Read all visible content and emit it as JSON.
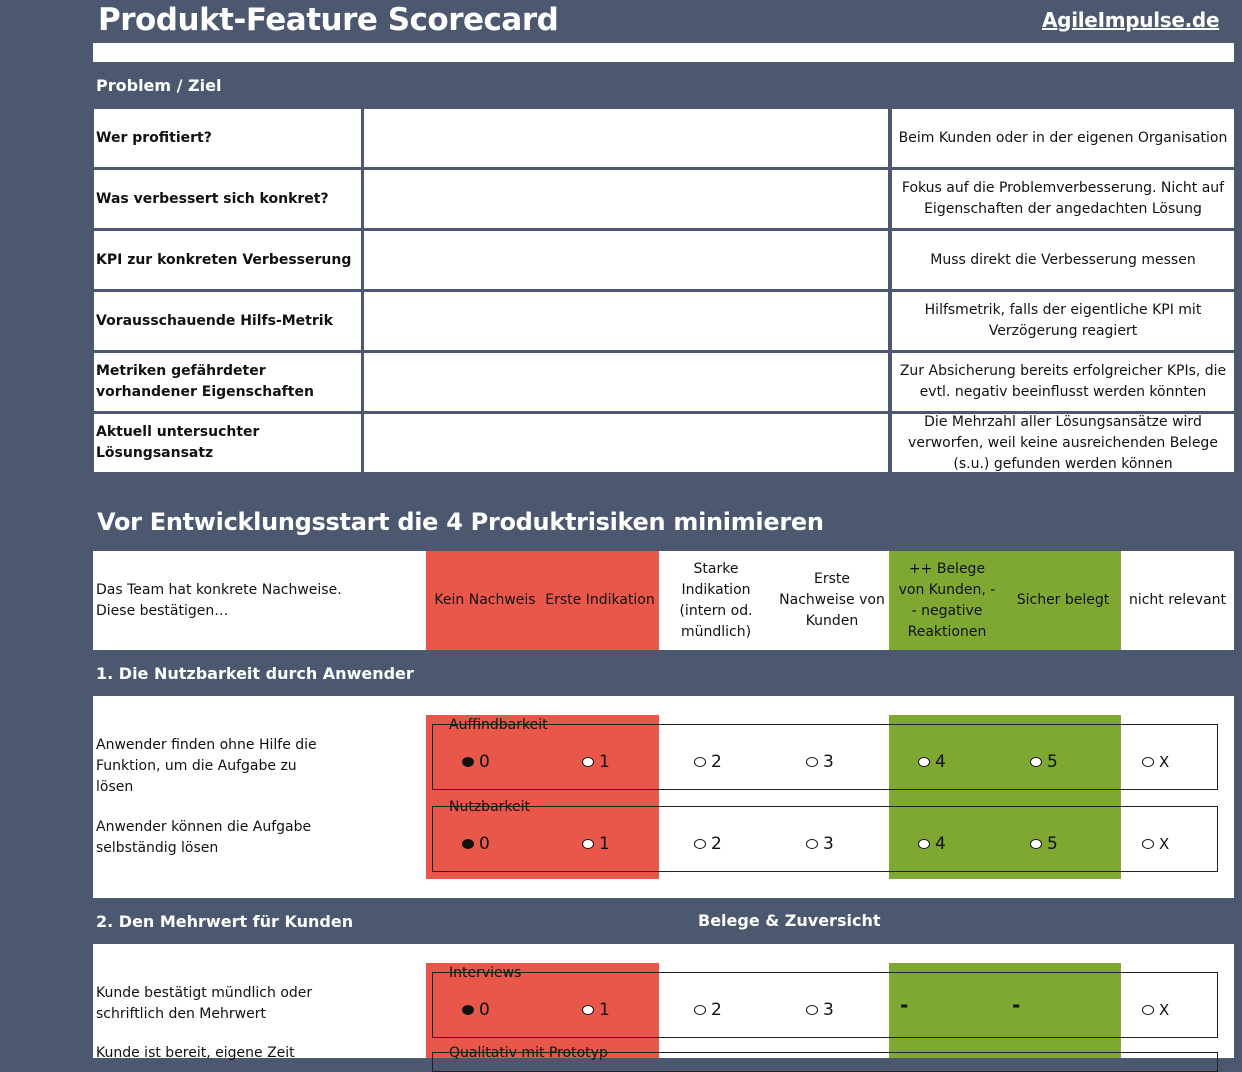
{
  "header": {
    "title": "Produkt-Feature Scorecard",
    "brand": "AgileImpulse.de"
  },
  "problem": {
    "section_label": "Problem / Ziel",
    "rows": [
      {
        "label": "Wer profitiert?",
        "value": "",
        "hint": "Beim Kunden oder in der eigenen Organisation"
      },
      {
        "label": "Was verbessert sich konkret?",
        "value": "",
        "hint": "Fokus auf die Problemverbesserung. Nicht auf Eigenschaften der angedachten Lösung"
      },
      {
        "label": "KPI zur konkreten Verbesserung",
        "value": "",
        "hint": "Muss direkt die Verbesserung messen"
      },
      {
        "label": "Vorausschauende Hilfs-Metrik",
        "value": "",
        "hint": "Hilfsmetrik, falls der eigentliche KPI mit Verzögerung reagiert"
      },
      {
        "label": "Metriken gefährdeter vorhandener Eigenschaften",
        "value": "",
        "hint": "Zur Absicherung bereits erfolgreicher KPIs, die evtl. negativ beeinflusst werden könnten"
      },
      {
        "label": "Aktuell untersuchter Lösungsansatz",
        "value": "",
        "hint": "Die Mehrzahl aller Lösungsansätze wird verworfen, weil keine ausreichenden Belege (s.u.) gefunden werden können"
      }
    ]
  },
  "risks": {
    "heading": "Vor Entwicklungsstart die 4 Produktrisiken minimieren",
    "intro": "Das Team hat konkrete Nachweise. Diese bestätigen…",
    "scale": [
      "Kein Nachweis",
      "Erste Indikation",
      "Starke Indikation (intern od. mündlich)",
      "Erste Nachweise von Kunden",
      "++ Belege von Kunden, -- negative Reaktionen",
      "Sicher belegt",
      "nicht relevant"
    ],
    "colors": {
      "red": "#e8574a",
      "green": "#7fa832",
      "frame": "#4b5870"
    }
  },
  "section1": {
    "label": "1. Die Nutzbarkeit durch Anwender",
    "items": [
      {
        "text": "Anwender finden ohne Hilfe die Funktion, um die Aufgabe zu lösen",
        "legend": "Auffindbarkeit",
        "options": [
          "0",
          "1",
          "2",
          "3",
          "4",
          "5",
          "X"
        ],
        "selected": "0"
      },
      {
        "text": "Anwender können die Aufgabe selbständig lösen",
        "legend": "Nutzbarkeit",
        "options": [
          "0",
          "1",
          "2",
          "3",
          "4",
          "5",
          "X"
        ],
        "selected": "0"
      }
    ]
  },
  "section2": {
    "label": "2. Den Mehrwert für Kunden",
    "sublabel": "Belege & Zuversicht",
    "items": [
      {
        "text": "Kunde bestätigt mündlich oder schriftlich den Mehrwert",
        "legend": "Interviews",
        "options": [
          "0",
          "1",
          "2",
          "3",
          "-",
          "-",
          "X"
        ],
        "selected": "0"
      },
      {
        "text": "Kunde ist bereit, eigene Zeit",
        "legend": "Qualitativ mit Prototyp"
      }
    ]
  }
}
